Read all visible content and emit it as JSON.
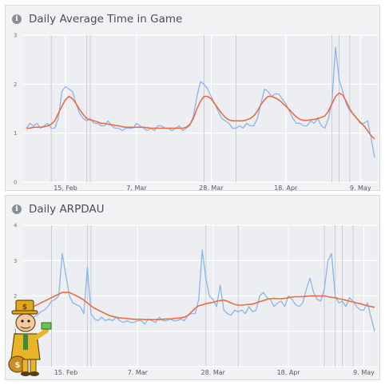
{
  "colors": {
    "raw": "#8ab4f0",
    "avg": "#ec6b45",
    "marker": "#c9ccd1",
    "grid": "#ffffff"
  },
  "chart_data": [
    {
      "type": "line",
      "title": "Daily Average Time in Game",
      "x_start": "2022-02-04",
      "x_ticks": [
        {
          "label": "15. Feb",
          "day": 11
        },
        {
          "label": "7. Mar",
          "day": 31
        },
        {
          "label": "28. Mar",
          "day": 52
        },
        {
          "label": "18. Apr",
          "day": 73
        },
        {
          "label": "9. May",
          "day": 94
        }
      ],
      "y_ticks": [
        "0",
        "1",
        "2",
        "3"
      ],
      "ylim": [
        0,
        3
      ],
      "markers": [
        7,
        17,
        18,
        50,
        59,
        86,
        88,
        91
      ],
      "series": [
        {
          "values": [
            1.1,
            1.2,
            1.15,
            1.2,
            1.1,
            1.15,
            1.2,
            1.1,
            1.1,
            1.3,
            1.85,
            1.95,
            1.9,
            1.85,
            1.6,
            1.4,
            1.3,
            1.25,
            1.3,
            1.2,
            1.2,
            1.15,
            1.15,
            1.25,
            1.15,
            1.1,
            1.1,
            1.05,
            1.1,
            1.1,
            1.1,
            1.2,
            1.15,
            1.1,
            1.05,
            1.1,
            1.05,
            1.15,
            1.15,
            1.1,
            1.1,
            1.05,
            1.1,
            1.15,
            1.05,
            1.1,
            1.15,
            1.35,
            1.75,
            2.05,
            2.0,
            1.9,
            1.75,
            1.6,
            1.45,
            1.3,
            1.25,
            1.2,
            1.1,
            1.1,
            1.15,
            1.1,
            1.2,
            1.15,
            1.15,
            1.3,
            1.6,
            1.9,
            1.85,
            1.75,
            1.8,
            1.8,
            1.7,
            1.6,
            1.45,
            1.3,
            1.2,
            1.2,
            1.15,
            1.15,
            1.25,
            1.2,
            1.3,
            1.15,
            1.1,
            1.3,
            1.65,
            2.75,
            2.1,
            1.85,
            1.6,
            1.45,
            1.4,
            1.3,
            1.2,
            1.2,
            1.25,
            0.9,
            0.5
          ]
        },
        {
          "values": [
            1.1,
            1.1,
            1.12,
            1.12,
            1.12,
            1.13,
            1.15,
            1.18,
            1.25,
            1.4,
            1.55,
            1.68,
            1.75,
            1.7,
            1.6,
            1.48,
            1.38,
            1.3,
            1.27,
            1.25,
            1.23,
            1.2,
            1.2,
            1.18,
            1.17,
            1.16,
            1.15,
            1.13,
            1.12,
            1.12,
            1.12,
            1.12,
            1.12,
            1.12,
            1.11,
            1.1,
            1.1,
            1.1,
            1.1,
            1.1,
            1.1,
            1.1,
            1.1,
            1.1,
            1.1,
            1.12,
            1.18,
            1.3,
            1.5,
            1.65,
            1.75,
            1.75,
            1.7,
            1.6,
            1.5,
            1.4,
            1.32,
            1.27,
            1.25,
            1.25,
            1.25,
            1.25,
            1.27,
            1.3,
            1.35,
            1.45,
            1.58,
            1.68,
            1.75,
            1.75,
            1.72,
            1.68,
            1.62,
            1.55,
            1.48,
            1.4,
            1.33,
            1.28,
            1.26,
            1.26,
            1.27,
            1.28,
            1.3,
            1.32,
            1.35,
            1.45,
            1.6,
            1.75,
            1.82,
            1.78,
            1.65,
            1.5,
            1.38,
            1.3,
            1.22,
            1.15,
            1.05,
            0.95,
            0.88
          ]
        }
      ]
    },
    {
      "type": "line",
      "title": "Daily ARPDAU",
      "x_start": "2022-02-04",
      "x_ticks": [
        {
          "label": "15. Feb",
          "day": 11
        },
        {
          "label": "7. Mar",
          "day": 31
        },
        {
          "label": "28. Mar",
          "day": 52
        },
        {
          "label": "18. Apr",
          "day": 73
        },
        {
          "label": "9. May",
          "day": 94
        }
      ],
      "y_ticks": [
        "0",
        "1",
        "2",
        "3",
        "4"
      ],
      "ylim": [
        0,
        4
      ],
      "markers": [
        7,
        17,
        18,
        50,
        59,
        83,
        86,
        88,
        91
      ],
      "series": [
        {
          "values": [
            1.3,
            1.35,
            1.4,
            1.45,
            1.55,
            1.6,
            1.7,
            1.85,
            1.9,
            2.0,
            3.2,
            2.6,
            2.0,
            1.8,
            1.75,
            1.7,
            1.5,
            2.8,
            1.5,
            1.35,
            1.3,
            1.4,
            1.3,
            1.35,
            1.3,
            1.4,
            1.3,
            1.25,
            1.3,
            1.25,
            1.25,
            1.3,
            1.3,
            1.2,
            1.35,
            1.3,
            1.25,
            1.4,
            1.3,
            1.3,
            1.35,
            1.3,
            1.3,
            1.35,
            1.3,
            1.45,
            1.5,
            1.5,
            1.9,
            3.3,
            2.5,
            2.0,
            1.9,
            1.7,
            2.3,
            1.6,
            1.5,
            1.45,
            1.6,
            1.55,
            1.6,
            1.5,
            1.7,
            1.55,
            1.6,
            2.0,
            2.1,
            1.95,
            1.9,
            1.7,
            1.8,
            1.85,
            1.7,
            2.0,
            1.9,
            1.75,
            1.7,
            1.8,
            2.2,
            2.5,
            2.1,
            1.9,
            1.85,
            2.2,
            3.0,
            3.2,
            2.0,
            1.8,
            1.85,
            1.7,
            1.95,
            1.85,
            1.7,
            1.6,
            1.6,
            1.8,
            1.4,
            1.0
          ]
        },
        {
          "values": [
            1.5,
            1.6,
            1.7,
            1.75,
            1.8,
            1.85,
            1.9,
            1.95,
            2.0,
            2.05,
            2.1,
            2.1,
            2.1,
            2.05,
            2.0,
            1.95,
            1.88,
            1.8,
            1.72,
            1.65,
            1.6,
            1.55,
            1.5,
            1.45,
            1.42,
            1.4,
            1.38,
            1.37,
            1.36,
            1.35,
            1.34,
            1.34,
            1.34,
            1.33,
            1.33,
            1.33,
            1.33,
            1.33,
            1.34,
            1.35,
            1.35,
            1.36,
            1.37,
            1.38,
            1.4,
            1.45,
            1.55,
            1.65,
            1.72,
            1.75,
            1.78,
            1.8,
            1.82,
            1.85,
            1.87,
            1.88,
            1.85,
            1.8,
            1.76,
            1.74,
            1.74,
            1.75,
            1.76,
            1.77,
            1.8,
            1.84,
            1.87,
            1.9,
            1.92,
            1.93,
            1.92,
            1.92,
            1.93,
            1.95,
            1.97,
            1.98,
            1.98,
            1.98,
            1.99,
            2.0,
            2.0,
            2.0,
            2.0,
            2.0,
            1.98,
            1.96,
            1.95,
            1.92,
            1.9,
            1.88,
            1.85,
            1.83,
            1.8,
            1.78,
            1.75,
            1.72,
            1.7,
            1.68
          ]
        }
      ]
    }
  ]
}
